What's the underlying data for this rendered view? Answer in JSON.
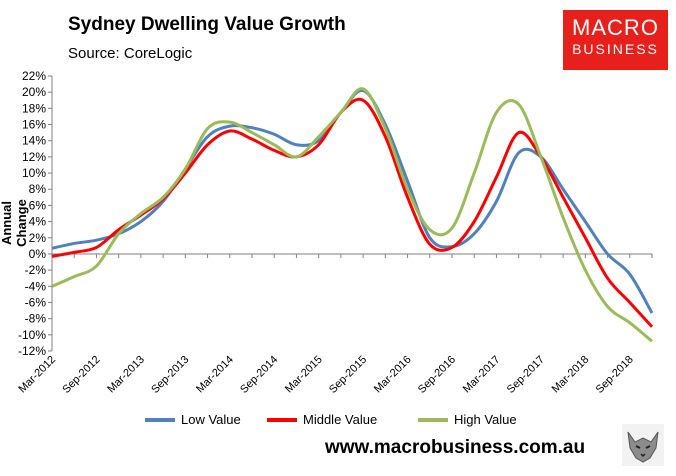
{
  "header": {
    "title": "Sydney Dwelling Value Growth",
    "source": "Source: CoreLogic"
  },
  "brand": {
    "line1": "MACRO",
    "line2": "BUSINESS",
    "color": "#e8201c"
  },
  "website": "www.macrobusiness.com.au",
  "chart_data": {
    "type": "line",
    "title": "Sydney Dwelling Value Growth",
    "ylabel": "Annual Change",
    "ylim": [
      -12,
      22
    ],
    "ytick_step": 2,
    "ytick_labels": [
      "-12%",
      "-10%",
      "-8%",
      "-6%",
      "-4%",
      "-2%",
      "0%",
      "2%",
      "4%",
      "6%",
      "8%",
      "10%",
      "12%",
      "14%",
      "16%",
      "18%",
      "20%",
      "22%"
    ],
    "x": [
      "Mar-2012",
      "Jun-2012",
      "Sep-2012",
      "Dec-2012",
      "Mar-2013",
      "Jun-2013",
      "Sep-2013",
      "Dec-2013",
      "Mar-2014",
      "Jun-2014",
      "Sep-2014",
      "Dec-2014",
      "Mar-2015",
      "Jun-2015",
      "Sep-2015",
      "Dec-2015",
      "Mar-2016",
      "Jun-2016",
      "Sep-2016",
      "Dec-2016",
      "Mar-2017",
      "Jun-2017",
      "Sep-2017",
      "Dec-2017",
      "Mar-2018",
      "Jun-2018",
      "Sep-2018",
      "Dec-2018"
    ],
    "xtick_labels": [
      "Mar-2012",
      "Sep-2012",
      "Mar-2013",
      "Sep-2013",
      "Mar-2014",
      "Sep-2014",
      "Mar-2015",
      "Sep-2015",
      "Mar-2016",
      "Sep-2016",
      "Mar-2017",
      "Sep-2017",
      "Mar-2018",
      "Sep-2018"
    ],
    "grid": false,
    "legend": "bottom",
    "series": [
      {
        "name": "Low Value",
        "color": "#4f81bd",
        "values": [
          0.7,
          1.3,
          1.7,
          2.5,
          4.0,
          6.5,
          10.5,
          14.5,
          15.8,
          15.6,
          14.8,
          13.5,
          14.0,
          17.5,
          20.2,
          16.0,
          9.0,
          2.0,
          0.9,
          2.5,
          6.5,
          12.5,
          12.0,
          8.0,
          4.0,
          0.0,
          -2.5,
          -7.3
        ]
      },
      {
        "name": "Middle Value",
        "color": "#ff0000",
        "values": [
          -0.3,
          0.2,
          0.8,
          3.0,
          4.8,
          6.8,
          10.0,
          13.5,
          15.2,
          14.2,
          12.8,
          12.0,
          13.5,
          17.5,
          19.0,
          14.5,
          7.0,
          1.2,
          0.8,
          4.0,
          9.5,
          15.0,
          12.0,
          7.0,
          2.0,
          -3.0,
          -6.0,
          -9.0
        ]
      },
      {
        "name": "High Value",
        "color": "#9bbb59",
        "values": [
          -4.0,
          -2.8,
          -1.5,
          2.5,
          5.0,
          7.0,
          10.5,
          15.5,
          16.3,
          15.0,
          13.5,
          12.0,
          14.5,
          17.5,
          20.4,
          15.5,
          8.0,
          3.0,
          3.2,
          10.0,
          17.5,
          18.5,
          12.0,
          4.5,
          -2.0,
          -6.5,
          -8.5,
          -10.8
        ]
      }
    ]
  }
}
